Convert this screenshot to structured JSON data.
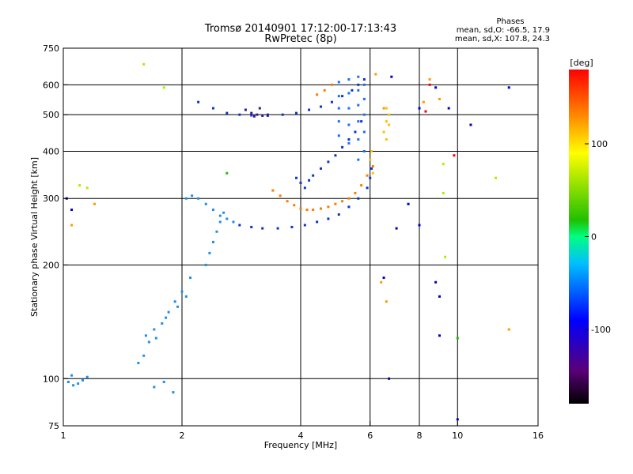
{
  "chart_data": {
    "type": "scatter",
    "title": "Tromsø 20140901 17:12:00-17:13:43",
    "subtitle": "RwPretec (8p)",
    "legend": {
      "heading": "Phases",
      "line1": "mean, sd,O: -66.5, 17.9",
      "line2": "mean, sd,X: 107.8, 24.3",
      "placement": "top-right"
    },
    "xlabel": "Frequency [MHz]",
    "ylabel": "Stationary phase Virtual Height [km]",
    "x_scale": "log",
    "y_scale": "log",
    "xlim": [
      1,
      16
    ],
    "ylim": [
      75,
      750
    ],
    "x_ticks": [
      1,
      2,
      4,
      6,
      8,
      10,
      16
    ],
    "y_ticks": [
      75,
      100,
      200,
      300,
      400,
      500,
      600,
      750
    ],
    "x_gridlines": [
      2,
      4,
      6,
      8,
      10
    ],
    "y_gridlines": [
      100,
      200,
      300,
      400,
      500,
      600
    ],
    "grid": true,
    "colorbar": {
      "label": "[deg]",
      "range": [
        -180,
        180
      ],
      "ticks": [
        100,
        0,
        -100
      ],
      "colormap": [
        "#000000",
        "#5a0078",
        "#0000ff",
        "#00bfff",
        "#00ff80",
        "#20c000",
        "#ffff00",
        "#ff8000",
        "#ff0000"
      ]
    },
    "series": [
      {
        "color": "#1f8fe8",
        "points": [
          [
            1.03,
            98
          ],
          [
            1.06,
            96
          ],
          [
            1.09,
            97
          ],
          [
            1.12,
            99
          ],
          [
            1.15,
            101
          ],
          [
            1.05,
            102
          ],
          [
            1.55,
            110
          ],
          [
            1.6,
            115
          ],
          [
            1.65,
            125
          ],
          [
            1.7,
            135
          ],
          [
            1.78,
            140
          ],
          [
            1.85,
            150
          ],
          [
            1.92,
            160
          ],
          [
            2.0,
            170
          ],
          [
            2.1,
            185
          ],
          [
            1.62,
            130
          ],
          [
            1.72,
            128
          ],
          [
            1.82,
            145
          ],
          [
            1.95,
            155
          ],
          [
            2.05,
            165
          ],
          [
            2.05,
            300
          ],
          [
            2.12,
            305
          ],
          [
            2.2,
            300
          ],
          [
            2.3,
            290
          ],
          [
            2.4,
            280
          ],
          [
            2.5,
            270
          ],
          [
            2.6,
            265
          ],
          [
            2.7,
            260
          ],
          [
            2.3,
            200
          ],
          [
            2.35,
            215
          ],
          [
            2.4,
            230
          ],
          [
            2.45,
            245
          ],
          [
            2.5,
            260
          ],
          [
            2.55,
            275
          ],
          [
            1.7,
            95
          ],
          [
            1.8,
            98
          ],
          [
            1.9,
            92
          ]
        ]
      },
      {
        "color": "#0a36c8",
        "points": [
          [
            2.8,
            255
          ],
          [
            3.0,
            252
          ],
          [
            3.2,
            250
          ],
          [
            3.5,
            250
          ],
          [
            3.8,
            252
          ],
          [
            4.1,
            255
          ],
          [
            4.4,
            260
          ],
          [
            4.7,
            265
          ],
          [
            5.0,
            272
          ],
          [
            5.3,
            285
          ],
          [
            5.6,
            300
          ],
          [
            5.9,
            320
          ],
          [
            6.0,
            340
          ],
          [
            6.05,
            360
          ],
          [
            2.2,
            540
          ],
          [
            2.4,
            520
          ],
          [
            2.6,
            505
          ],
          [
            2.8,
            500
          ],
          [
            3.0,
            498
          ],
          [
            3.3,
            497
          ],
          [
            3.6,
            500
          ],
          [
            3.9,
            505
          ],
          [
            4.2,
            515
          ],
          [
            4.5,
            525
          ],
          [
            4.8,
            540
          ],
          [
            5.1,
            560
          ],
          [
            5.4,
            580
          ],
          [
            5.6,
            600
          ],
          [
            5.8,
            620
          ],
          [
            3.9,
            340
          ],
          [
            4.0,
            330
          ],
          [
            4.1,
            320
          ],
          [
            4.2,
            335
          ],
          [
            4.3,
            345
          ],
          [
            4.5,
            360
          ],
          [
            4.7,
            375
          ],
          [
            4.9,
            390
          ],
          [
            5.1,
            410
          ],
          [
            5.3,
            430
          ],
          [
            5.5,
            450
          ],
          [
            5.7,
            480
          ]
        ]
      },
      {
        "color": "#1a6fff",
        "points": [
          [
            5.0,
            610
          ],
          [
            5.0,
            560
          ],
          [
            5.0,
            520
          ],
          [
            5.0,
            480
          ],
          [
            5.0,
            440
          ],
          [
            5.3,
            620
          ],
          [
            5.3,
            570
          ],
          [
            5.3,
            520
          ],
          [
            5.3,
            470
          ],
          [
            5.3,
            420
          ],
          [
            5.6,
            630
          ],
          [
            5.6,
            580
          ],
          [
            5.6,
            530
          ],
          [
            5.6,
            480
          ],
          [
            5.6,
            430
          ],
          [
            5.6,
            380
          ],
          [
            5.8,
            600
          ],
          [
            5.8,
            550
          ],
          [
            5.8,
            500
          ],
          [
            5.8,
            450
          ],
          [
            5.8,
            400
          ]
        ]
      },
      {
        "color": "#3a1590",
        "points": [
          [
            2.9,
            515
          ],
          [
            3.0,
            505
          ],
          [
            3.1,
            500
          ],
          [
            3.2,
            497
          ],
          [
            3.3,
            500
          ],
          [
            3.15,
            520
          ],
          [
            3.05,
            495
          ]
        ]
      },
      {
        "color": "#ff7a00",
        "points": [
          [
            3.4,
            315
          ],
          [
            3.55,
            305
          ],
          [
            3.7,
            295
          ],
          [
            3.85,
            288
          ],
          [
            4.0,
            282
          ],
          [
            4.15,
            280
          ],
          [
            4.3,
            280
          ],
          [
            4.5,
            282
          ],
          [
            4.7,
            285
          ],
          [
            4.9,
            290
          ],
          [
            5.1,
            295
          ],
          [
            5.3,
            300
          ],
          [
            5.5,
            310
          ],
          [
            5.7,
            325
          ],
          [
            5.9,
            345
          ],
          [
            6.1,
            365
          ],
          [
            4.4,
            565
          ],
          [
            4.6,
            580
          ],
          [
            4.8,
            600
          ]
        ]
      },
      {
        "color": "#ffc000",
        "points": [
          [
            6.0,
            380
          ],
          [
            6.05,
            400
          ],
          [
            6.1,
            350
          ],
          [
            6.5,
            450
          ],
          [
            6.6,
            430
          ],
          [
            6.6,
            480
          ],
          [
            6.6,
            520
          ],
          [
            6.7,
            470
          ],
          [
            6.7,
            500
          ]
        ]
      },
      {
        "color": "#aaee00",
        "points": [
          [
            1.1,
            325
          ],
          [
            1.15,
            320
          ],
          [
            1.6,
            680
          ],
          [
            1.8,
            590
          ],
          [
            9.2,
            370
          ],
          [
            9.2,
            310
          ],
          [
            9.3,
            210
          ],
          [
            12.5,
            340
          ]
        ]
      },
      {
        "color": "#ff9900",
        "points": [
          [
            1.05,
            255
          ],
          [
            1.2,
            290
          ],
          [
            6.5,
            520
          ],
          [
            6.4,
            180
          ],
          [
            6.6,
            160
          ],
          [
            8.5,
            620
          ],
          [
            8.2,
            540
          ],
          [
            6.2,
            640
          ],
          [
            9.0,
            550
          ],
          [
            13.5,
            135
          ]
        ]
      },
      {
        "color": "#0000c0",
        "points": [
          [
            1.02,
            300
          ],
          [
            1.05,
            280
          ],
          [
            6.8,
            630
          ],
          [
            7.0,
            250
          ],
          [
            7.5,
            290
          ],
          [
            8.0,
            520
          ],
          [
            8.8,
            590
          ],
          [
            9.5,
            520
          ],
          [
            10.8,
            470
          ],
          [
            13.5,
            590
          ],
          [
            10.0,
            78
          ],
          [
            9.0,
            165
          ],
          [
            6.7,
            100
          ],
          [
            9.0,
            130
          ],
          [
            8.0,
            255
          ],
          [
            6.5,
            185
          ],
          [
            8.8,
            180
          ]
        ]
      },
      {
        "color": "#ff0000",
        "points": [
          [
            8.5,
            600
          ],
          [
            8.3,
            510
          ],
          [
            9.8,
            390
          ]
        ]
      },
      {
        "color": "#22bb00",
        "points": [
          [
            10.0,
            128
          ],
          [
            2.6,
            350
          ]
        ]
      }
    ]
  }
}
